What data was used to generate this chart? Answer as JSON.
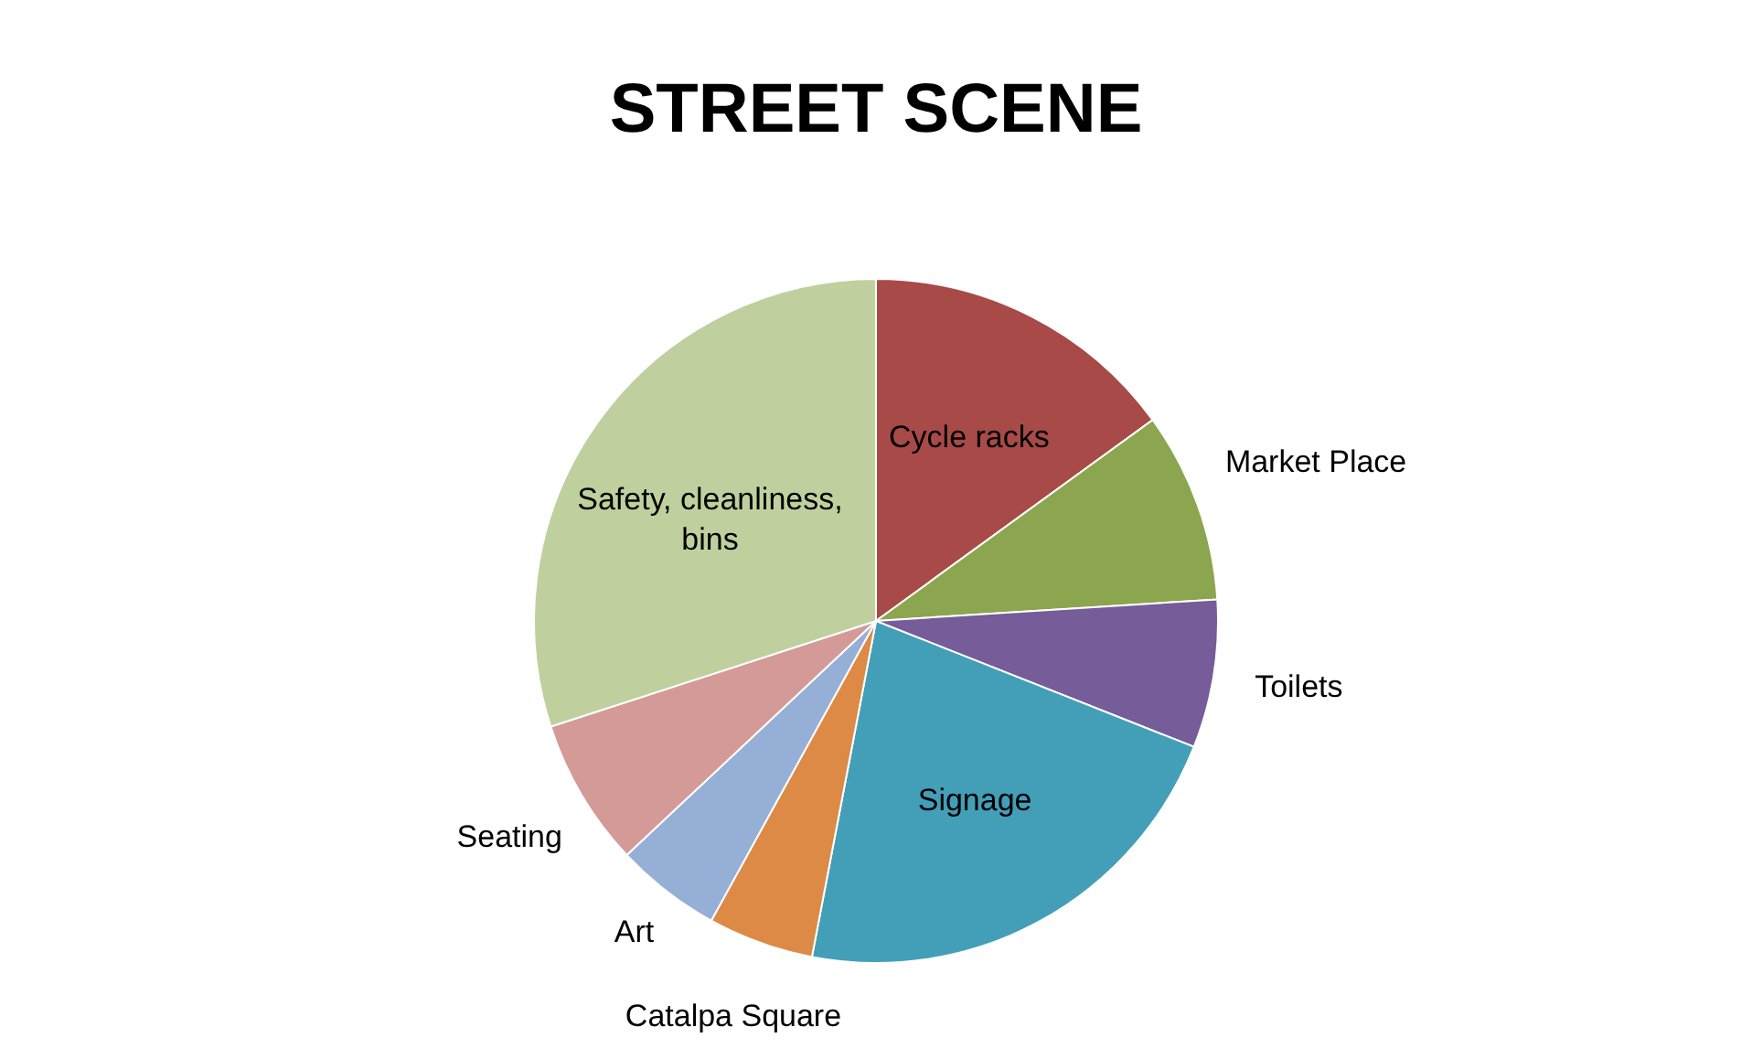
{
  "chart_data": {
    "type": "pie",
    "title": "STREET SCENE",
    "categories": [
      "Cycle racks",
      "Market Place",
      "Toilets",
      "Signage",
      "Catalpa Square",
      "Art",
      "Seating",
      "Safety, cleanliness, bins"
    ],
    "values": [
      15,
      9,
      7,
      22,
      5,
      5,
      7,
      30
    ],
    "colors": [
      "#a84a47",
      "#8ca54f",
      "#765c98",
      "#439fb7",
      "#dc8a45",
      "#95afd6",
      "#d49a98",
      "#bfd09e"
    ]
  }
}
